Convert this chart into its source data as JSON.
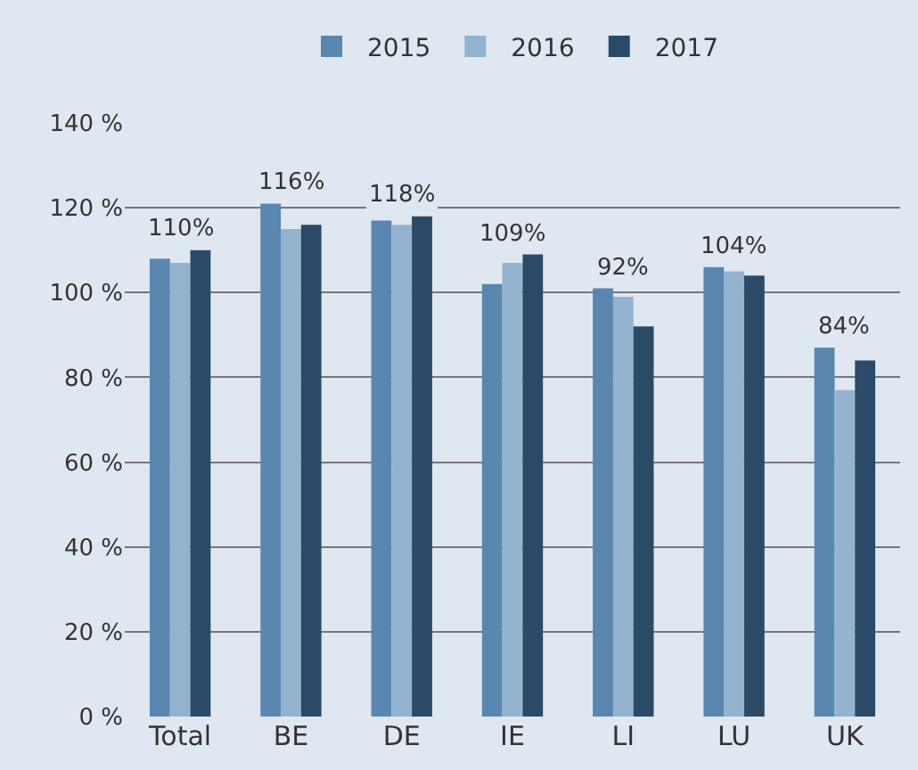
{
  "chart_data": {
    "type": "bar",
    "categories": [
      "Total",
      "BE",
      "DE",
      "IE",
      "LI",
      "LU",
      "UK"
    ],
    "series": [
      {
        "name": "2015",
        "color": "#5a87b0",
        "values": [
          108,
          121,
          117,
          102,
          101,
          106,
          87
        ]
      },
      {
        "name": "2016",
        "color": "#93b3cf",
        "values": [
          107,
          115,
          116,
          107,
          99,
          105,
          77
        ]
      },
      {
        "name": "2017",
        "color": "#2b4a68",
        "values": [
          110,
          116,
          118,
          109,
          92,
          104,
          84
        ],
        "value_labels": [
          "110%",
          "116%",
          "118%",
          "109%",
          "92%",
          "104%",
          "84%"
        ]
      }
    ],
    "ylim": [
      0,
      140
    ],
    "yticks": [
      {
        "value": 0,
        "label": "0 %"
      },
      {
        "value": 20,
        "label": "20 %"
      },
      {
        "value": 40,
        "label": "40 %"
      },
      {
        "value": 60,
        "label": "60 %"
      },
      {
        "value": 80,
        "label": "80 %"
      },
      {
        "value": 100,
        "label": "100 %"
      },
      {
        "value": 120,
        "label": "120 %"
      },
      {
        "value": 140,
        "label": "140 %"
      }
    ],
    "grid": "y",
    "legend": "top"
  }
}
